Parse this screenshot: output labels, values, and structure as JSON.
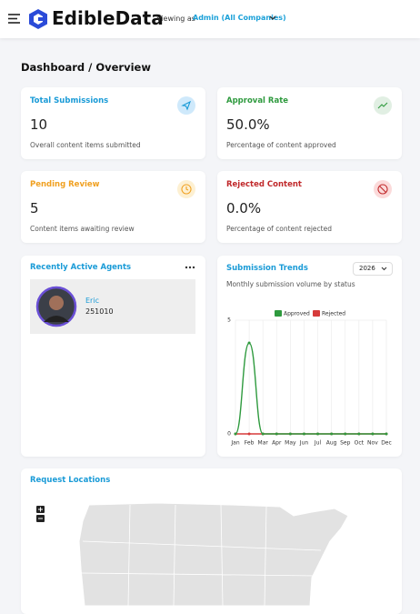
{
  "header": {
    "brand": "EdibleData",
    "viewing_label": "Viewing as",
    "viewing_value": "Admin (All Companies)"
  },
  "page_title": "Dashboard / Overview",
  "stats": [
    {
      "title": "Total Submissions",
      "value": "10",
      "description": "Overall content items submitted"
    },
    {
      "title": "Approval Rate",
      "value": "50.0%",
      "description": "Percentage of content approved"
    },
    {
      "title": "Pending Review",
      "value": "5",
      "description": "Content items awaiting review"
    },
    {
      "title": "Rejected Content",
      "value": "0.0%",
      "description": "Percentage of content rejected"
    }
  ],
  "agents": {
    "title": "Recently Active Agents",
    "items": [
      {
        "name": "Eric",
        "id": "251010"
      }
    ]
  },
  "trends": {
    "title": "Submission Trends",
    "year": "2026",
    "subtitle": "Monthly submission volume by status",
    "chart": {
      "type": "line",
      "categories": [
        "Jan",
        "Feb",
        "Mar",
        "Apr",
        "May",
        "Jun",
        "Jul",
        "Aug",
        "Sep",
        "Oct",
        "Nov",
        "Dec"
      ],
      "series": [
        {
          "name": "Approved",
          "color": "#2e9a3e",
          "values": [
            0,
            4,
            0,
            0,
            0,
            0,
            0,
            0,
            0,
            0,
            0,
            0
          ]
        },
        {
          "name": "Rejected",
          "color": "#d63b3b",
          "values": [
            0,
            0,
            0,
            0,
            0,
            0,
            0,
            0,
            0,
            0,
            0,
            0
          ]
        }
      ],
      "ylim": [
        0,
        5
      ],
      "yticks": [
        0,
        5
      ],
      "grid": true
    }
  },
  "map": {
    "title": "Request Locations"
  }
}
